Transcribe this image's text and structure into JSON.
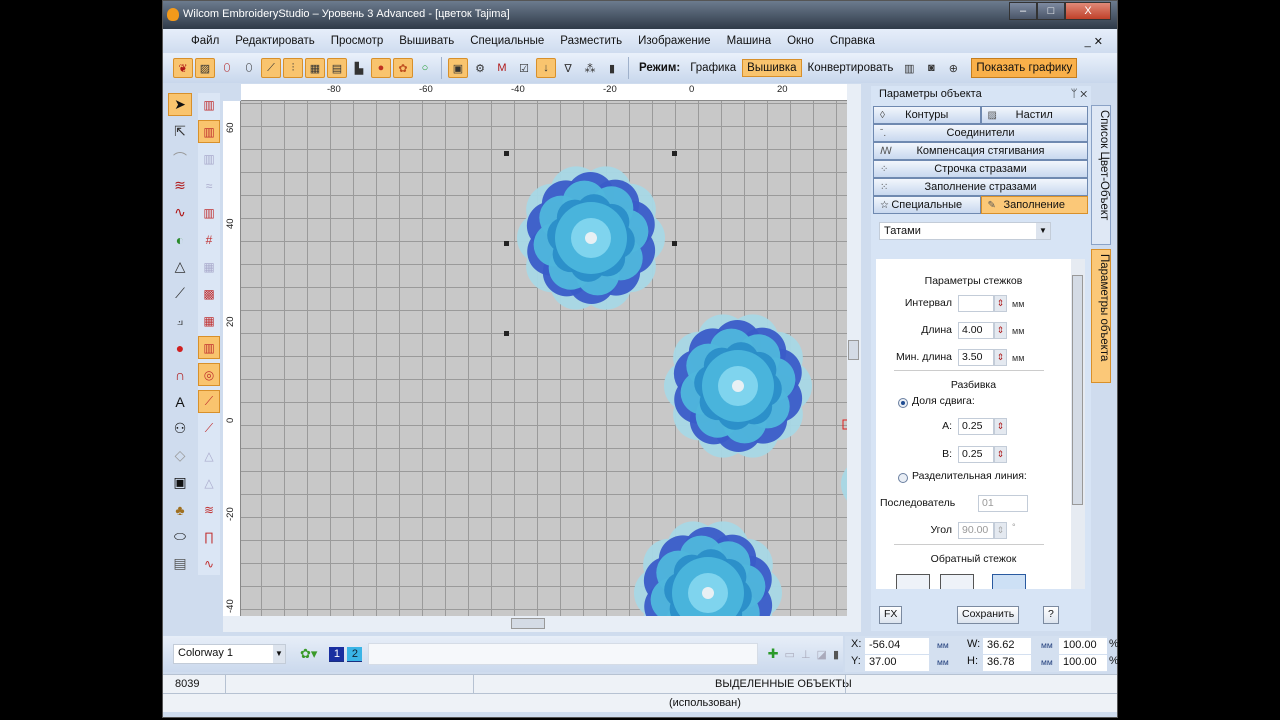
{
  "window": {
    "title": "Wilcom EmbroideryStudio – Уровень 3 Advanced - [цветок       Tajima]",
    "min": "–",
    "max": "□",
    "close": "X"
  },
  "menu": [
    "Файл",
    "Редактировать",
    "Просмотр",
    "Вышивать",
    "Специальные",
    "Разместить",
    "Изображение",
    "Машина",
    "Окно",
    "Справка"
  ],
  "mdi_controls": "_ ✕",
  "toolbar": {
    "mode_label": "Режим:",
    "mode_graphics": "Графика",
    "mode_embroidery": "Вышивка",
    "convert": "Конвертировать",
    "show_graphics": "Показать графику"
  },
  "ruler": {
    "h": [
      "-80",
      "-60",
      "-40",
      "-20",
      "0",
      "20"
    ],
    "v": [
      "60",
      "40",
      "20",
      "0",
      "-20",
      "-40"
    ]
  },
  "panel": {
    "title": "Параметры объекта",
    "tabs": {
      "contours": "Контуры",
      "layering": "Настил",
      "connectors": "Соединители",
      "pull_comp": "Компенсация стягивания",
      "rhinestone_run": "Строчка стразами",
      "rhinestone_fill": "Заполнение стразами",
      "special": "Специальные",
      "fill": "Заполнение"
    },
    "fill_type": "Татами",
    "stitch_params": "Параметры стежков",
    "interval_label": "Интервал",
    "interval_value": "",
    "length_label": "Длина",
    "length_value": "4.00",
    "min_length_label": "Мин. длина",
    "min_length_value": "3.50",
    "unit": "мм",
    "split": "Разбивка",
    "offset_fraction": "Доля сдвига:",
    "a_label": "A:",
    "a_value": "0.25",
    "b_label": "B:",
    "b_value": "0.25",
    "split_line": "Разделительная линия:",
    "sequence_label": "Последователь",
    "sequence_value": "01",
    "angle_label": "Угол",
    "angle_value": "90.00",
    "angle_unit": "°",
    "backstitch": "Обратный стежок",
    "fx": "FX",
    "save": "Сохранить",
    "help": "?"
  },
  "vtabs": {
    "color_object_list": "Список Цвет-Объект",
    "object_properties": "Параметры объекта"
  },
  "bottom": {
    "colorway": "Colorway 1",
    "swatches": [
      "1",
      "2"
    ]
  },
  "coords": {
    "x_label": "X:",
    "x": "-56.04",
    "y_label": "Y:",
    "y": "37.00",
    "w_label": "W:",
    "w": "36.62",
    "h_label": "H:",
    "h": "36.78",
    "unit": "мм",
    "w_pct": "100.00",
    "h_pct": "100.00",
    "pct": "%"
  },
  "status": {
    "stitches": "8039",
    "selected": "ВЫДЕЛЕННЫЕ ОБЪЕКТЫ",
    "used": "(использован)"
  }
}
